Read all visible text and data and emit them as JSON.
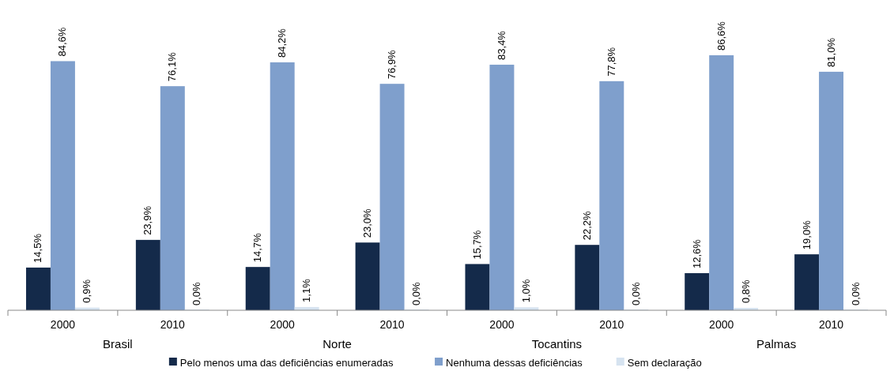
{
  "chart_data": {
    "type": "bar",
    "categories": [
      "2000",
      "2010",
      "2000",
      "2010",
      "2000",
      "2010",
      "2000",
      "2010"
    ],
    "annotations": [
      "Brasil",
      "Norte",
      "Tocantins",
      "Palmas"
    ],
    "legend": "bottom",
    "series": [
      {
        "name": "Pelo menos uma das deficiências enumeradas",
        "color": "#142a4a",
        "values": [
          14.5,
          23.9,
          14.7,
          23.0,
          15.7,
          22.2,
          12.6,
          19.0
        ],
        "value_labels": [
          "14,5%",
          "23,9%",
          "14,7%",
          "23,0%",
          "15,7%",
          "22,2%",
          "12,6%",
          "19,0%"
        ]
      },
      {
        "name": "Nenhuma dessas deficiências",
        "color": "#7f9fcc",
        "values": [
          84.6,
          76.1,
          84.2,
          76.9,
          83.4,
          77.8,
          86.6,
          81.0
        ],
        "value_labels": [
          "84,6%",
          "76,1%",
          "84,2%",
          "76,9%",
          "83,4%",
          "77,8%",
          "86,6%",
          "81,0%"
        ]
      },
      {
        "name": "Sem declaração",
        "color": "#d6e3f0",
        "values": [
          0.9,
          0.0,
          1.1,
          0.0,
          1.0,
          0.0,
          0.8,
          0.0
        ],
        "value_labels": [
          "0,9%",
          "0,0%",
          "1,1%",
          "0,0%",
          "1,0%",
          "0,0%",
          "0,8%",
          "0,0%"
        ]
      }
    ]
  }
}
